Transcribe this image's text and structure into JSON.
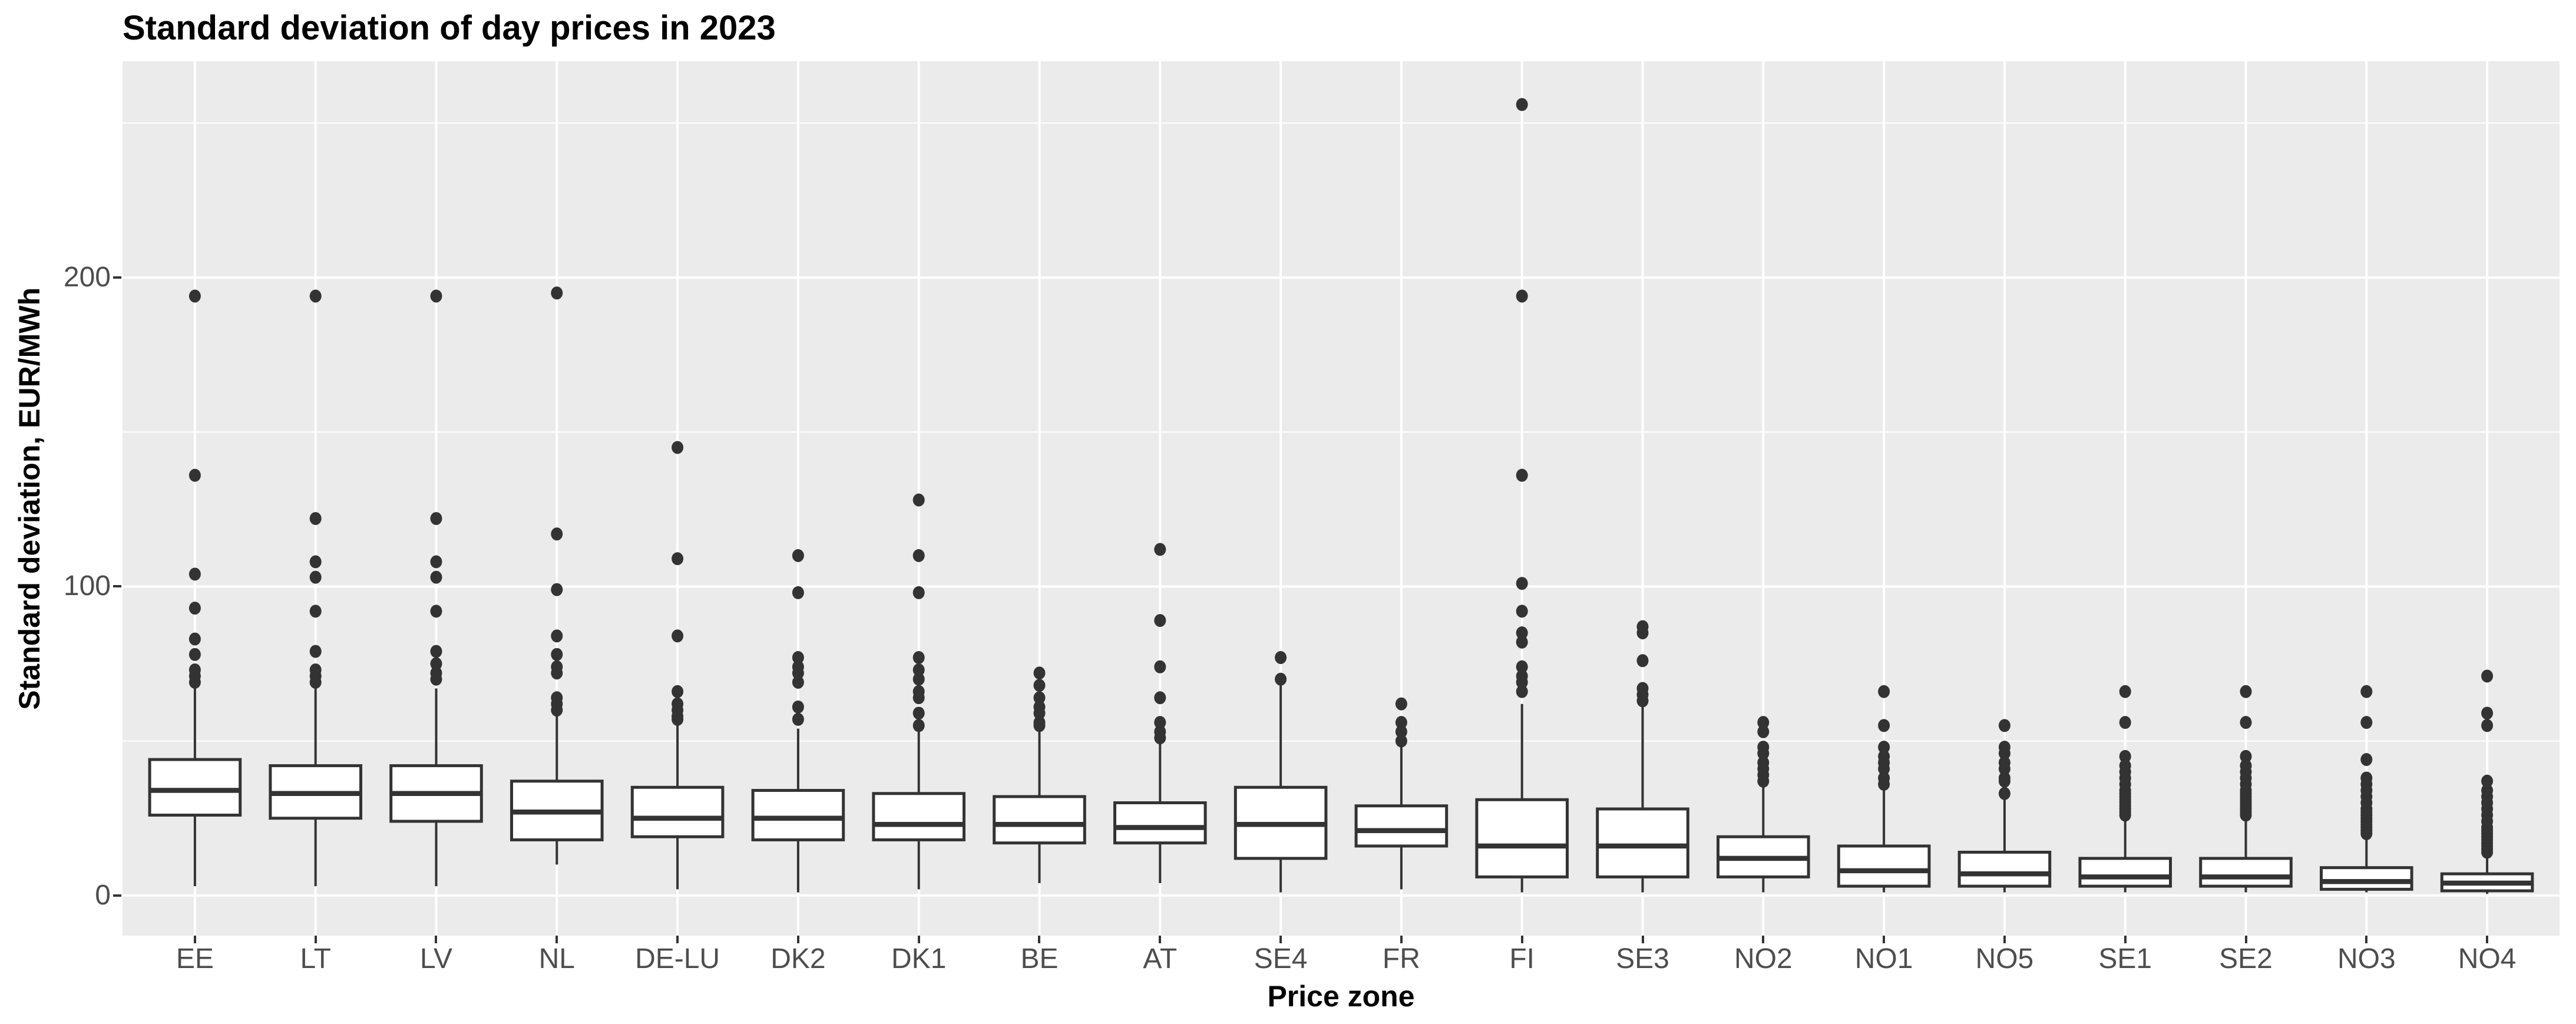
{
  "title": "Standard deviation of day prices in 2023",
  "colors": {
    "background": "#FFFFFF",
    "panel_background": "#EBEBEB",
    "gridline": "#FFFFFF",
    "box_stroke": "#333333",
    "box_fill": "#FFFFFF",
    "outlier": "#333333",
    "tick_mark": "#333333",
    "tick_label": "#4D4D4D",
    "title_text": "#000000"
  },
  "chart_data": {
    "type": "boxplot",
    "title": "Standard deviation of day prices in 2023",
    "xlabel": "Price zone",
    "ylabel": "Standard deviation, EUR/MWh",
    "ylim": [
      -13,
      270
    ],
    "yticks": [
      0,
      100,
      200
    ],
    "minor_gridlines": [
      50,
      150,
      250
    ],
    "grid": true,
    "legend_position": "none",
    "categories": [
      "EE",
      "LT",
      "LV",
      "NL",
      "DE-LU",
      "DK2",
      "DK1",
      "BE",
      "AT",
      "SE4",
      "FR",
      "FI",
      "SE3",
      "NO2",
      "NO1",
      "NO5",
      "SE1",
      "SE2",
      "NO3",
      "NO4"
    ],
    "series": [
      {
        "zone": "EE",
        "whisker_low": 3,
        "q1": 26,
        "median": 34,
        "q3": 44,
        "whisker_high": 68,
        "outliers": [
          69,
          71,
          73,
          78,
          83,
          93,
          104,
          136,
          194
        ]
      },
      {
        "zone": "LT",
        "whisker_low": 3,
        "q1": 25,
        "median": 33,
        "q3": 42,
        "whisker_high": 67,
        "outliers": [
          69,
          71,
          73,
          79,
          92,
          103,
          108,
          122,
          194
        ]
      },
      {
        "zone": "LV",
        "whisker_low": 3,
        "q1": 24,
        "median": 33,
        "q3": 42,
        "whisker_high": 67,
        "outliers": [
          70,
          72,
          75,
          79,
          92,
          103,
          108,
          122,
          194
        ]
      },
      {
        "zone": "NL",
        "whisker_low": 10,
        "q1": 18,
        "median": 27,
        "q3": 37,
        "whisker_high": 58,
        "outliers": [
          60,
          62,
          64,
          72,
          74,
          78,
          84,
          99,
          117,
          195
        ]
      },
      {
        "zone": "DE-LU",
        "whisker_low": 2,
        "q1": 19,
        "median": 25,
        "q3": 35,
        "whisker_high": 55,
        "outliers": [
          57,
          58,
          60,
          62,
          66,
          84,
          109,
          145
        ]
      },
      {
        "zone": "DK2",
        "whisker_low": 1,
        "q1": 18,
        "median": 25,
        "q3": 34,
        "whisker_high": 54,
        "outliers": [
          57,
          61,
          69,
          72,
          74,
          77,
          98,
          110
        ]
      },
      {
        "zone": "DK1",
        "whisker_low": 2,
        "q1": 18,
        "median": 23,
        "q3": 33,
        "whisker_high": 53,
        "outliers": [
          55,
          59,
          64,
          66,
          70,
          73,
          77,
          98,
          110,
          128
        ]
      },
      {
        "zone": "BE",
        "whisker_low": 4,
        "q1": 17,
        "median": 23,
        "q3": 32,
        "whisker_high": 53,
        "outliers": [
          55,
          56,
          59,
          61,
          64,
          68,
          72
        ]
      },
      {
        "zone": "AT",
        "whisker_low": 4,
        "q1": 17,
        "median": 22,
        "q3": 30,
        "whisker_high": 49,
        "outliers": [
          51,
          53,
          56,
          64,
          74,
          89,
          112
        ]
      },
      {
        "zone": "SE4",
        "whisker_low": 1,
        "q1": 12,
        "median": 23,
        "q3": 35,
        "whisker_high": 68,
        "outliers": [
          70,
          77
        ]
      },
      {
        "zone": "FR",
        "whisker_low": 2,
        "q1": 16,
        "median": 21,
        "q3": 29,
        "whisker_high": 48,
        "outliers": [
          50,
          53,
          56,
          62
        ]
      },
      {
        "zone": "FI",
        "whisker_low": 1,
        "q1": 6,
        "median": 16,
        "q3": 31,
        "whisker_high": 62,
        "outliers": [
          66,
          69,
          71,
          74,
          82,
          85,
          92,
          101,
          136,
          194,
          256
        ]
      },
      {
        "zone": "SE3",
        "whisker_low": 1,
        "q1": 6,
        "median": 16,
        "q3": 28,
        "whisker_high": 61,
        "outliers": [
          63,
          65,
          67,
          76,
          85,
          87
        ]
      },
      {
        "zone": "NO2",
        "whisker_low": 1,
        "q1": 6,
        "median": 12,
        "q3": 19,
        "whisker_high": 35,
        "outliers": [
          37,
          39,
          41,
          43,
          46,
          48,
          53,
          56
        ]
      },
      {
        "zone": "NO1",
        "whisker_low": 1,
        "q1": 3,
        "median": 8,
        "q3": 16,
        "whisker_high": 34,
        "outliers": [
          36,
          38,
          41,
          43,
          45,
          48,
          55,
          66
        ]
      },
      {
        "zone": "NO5",
        "whisker_low": 1,
        "q1": 3,
        "median": 7,
        "q3": 14,
        "whisker_high": 31,
        "outliers": [
          33,
          37,
          38,
          41,
          43,
          46,
          48,
          55
        ]
      },
      {
        "zone": "SE1",
        "whisker_low": 1,
        "q1": 3,
        "median": 6,
        "q3": 12,
        "whisker_high": 25,
        "outliers": [
          26,
          27,
          28,
          29,
          30,
          31,
          32,
          33,
          34,
          36,
          38,
          40,
          42,
          45,
          56,
          66
        ]
      },
      {
        "zone": "SE2",
        "whisker_low": 1,
        "q1": 3,
        "median": 6,
        "q3": 12,
        "whisker_high": 25,
        "outliers": [
          26,
          27,
          28,
          29,
          30,
          31,
          32,
          33,
          34,
          36,
          38,
          40,
          42,
          45,
          56,
          66
        ]
      },
      {
        "zone": "NO3",
        "whisker_low": 1,
        "q1": 2,
        "median": 4.5,
        "q3": 9,
        "whisker_high": 19,
        "outliers": [
          20,
          21,
          22,
          23,
          24,
          25,
          26,
          27,
          28,
          30,
          32,
          34,
          36,
          38,
          44,
          56,
          66
        ]
      },
      {
        "zone": "NO4",
        "whisker_low": 0.5,
        "q1": 1.5,
        "median": 4,
        "q3": 7,
        "whisker_high": 13.5,
        "outliers": [
          14,
          15,
          16,
          17,
          18,
          19,
          20,
          21,
          22,
          24,
          26,
          28,
          30,
          32,
          34,
          37,
          55,
          59,
          71
        ]
      }
    ]
  }
}
